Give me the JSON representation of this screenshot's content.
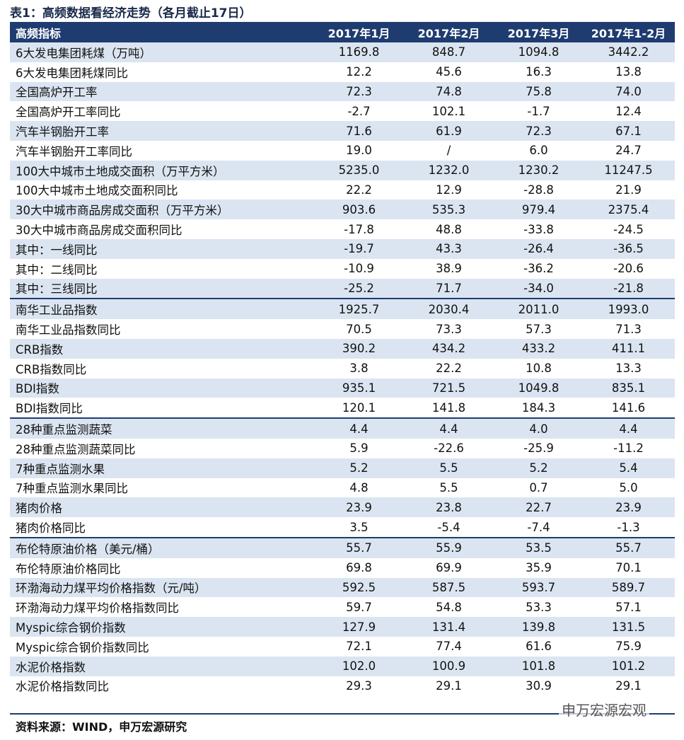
{
  "title": "表1：高频数据看经济走势（各月截止17日）",
  "table": {
    "header": [
      "高频指标",
      "2017年1月",
      "2017年2月",
      "2017年3月",
      "2017年1-2月"
    ],
    "sections": [
      {
        "rows": [
          [
            "6大发电集团耗煤（万吨）",
            "1169.8",
            "848.7",
            "1094.8",
            "3442.2"
          ],
          [
            "6大发电集团耗煤同比",
            "12.2",
            "45.6",
            "16.3",
            "13.8"
          ],
          [
            "全国高炉开工率",
            "72.3",
            "74.8",
            "75.8",
            "74.0"
          ],
          [
            "全国高炉开工率同比",
            "-2.7",
            "102.1",
            "-1.7",
            "12.4"
          ],
          [
            "汽车半钢胎开工率",
            "71.6",
            "61.9",
            "72.3",
            "67.1"
          ],
          [
            "汽车半钢胎开工率同比",
            "19.0",
            "/",
            "6.0",
            "24.7"
          ],
          [
            "100大中城市土地成交面积（万平方米）",
            "5235.0",
            "1232.0",
            "1230.2",
            "11247.5"
          ],
          [
            "100大中城市土地成交面积同比",
            "22.2",
            "12.9",
            "-28.8",
            "21.9"
          ],
          [
            "30大中城市商品房成交面积（万平方米）",
            "903.6",
            "535.3",
            "979.4",
            "2375.4"
          ],
          [
            "30大中城市商品房成交面积同比",
            "-17.8",
            "48.8",
            "-33.8",
            "-24.5"
          ],
          [
            "其中：一线同比",
            "-19.7",
            "43.3",
            "-26.4",
            "-36.5"
          ],
          [
            "其中：二线同比",
            "-10.9",
            "38.9",
            "-36.2",
            "-20.6"
          ],
          [
            "其中：三线同比",
            "-25.2",
            "71.7",
            "-34.0",
            "-21.8"
          ]
        ]
      },
      {
        "rows": [
          [
            "南华工业品指数",
            "1925.7",
            "2030.4",
            "2011.0",
            "1993.0"
          ],
          [
            "南华工业品指数同比",
            "70.5",
            "73.3",
            "57.3",
            "71.3"
          ],
          [
            "CRB指数",
            "390.2",
            "434.2",
            "433.2",
            "411.1"
          ],
          [
            "CRB指数同比",
            "3.8",
            "22.2",
            "10.8",
            "13.3"
          ],
          [
            "BDI指数",
            "935.1",
            "721.5",
            "1049.8",
            "835.1"
          ],
          [
            "BDI指数同比",
            "120.1",
            "141.8",
            "184.3",
            "141.6"
          ]
        ]
      },
      {
        "rows": [
          [
            "28种重点监测蔬菜",
            "4.4",
            "4.4",
            "4.0",
            "4.4"
          ],
          [
            "28种重点监测蔬菜同比",
            "5.9",
            "-22.6",
            "-25.9",
            "-11.2"
          ],
          [
            "7种重点监测水果",
            "5.2",
            "5.5",
            "5.2",
            "5.4"
          ],
          [
            "7种重点监测水果同比",
            "4.8",
            "5.5",
            "0.7",
            "5.0"
          ],
          [
            "猪肉价格",
            "23.9",
            "23.8",
            "22.7",
            "23.9"
          ],
          [
            "猪肉价格同比",
            "3.5",
            "-5.4",
            "-7.4",
            "-1.3"
          ]
        ]
      },
      {
        "rows": [
          [
            "布伦特原油价格（美元/桶）",
            "55.7",
            "55.9",
            "53.5",
            "55.7"
          ],
          [
            "布伦特原油价格同比",
            "69.8",
            "69.9",
            "35.9",
            "70.1"
          ],
          [
            "环渤海动力煤平均价格指数（元/吨）",
            "592.5",
            "587.5",
            "593.7",
            "589.7"
          ],
          [
            "环渤海动力煤平均价格指数同比",
            "59.7",
            "54.8",
            "53.3",
            "57.1"
          ],
          [
            "Myspic综合钢价指数",
            "127.9",
            "131.4",
            "139.8",
            "131.5"
          ],
          [
            "Myspic综合钢价指数同比",
            "72.1",
            "77.4",
            "61.6",
            "75.9"
          ],
          [
            "水泥价格指数",
            "102.0",
            "100.9",
            "101.8",
            "101.2"
          ],
          [
            "水泥价格指数同比",
            "29.3",
            "29.1",
            "30.9",
            "29.1"
          ]
        ]
      }
    ]
  },
  "source": "资料来源：WIND，申万宏源研究",
  "watermark": "申万宏源宏观"
}
